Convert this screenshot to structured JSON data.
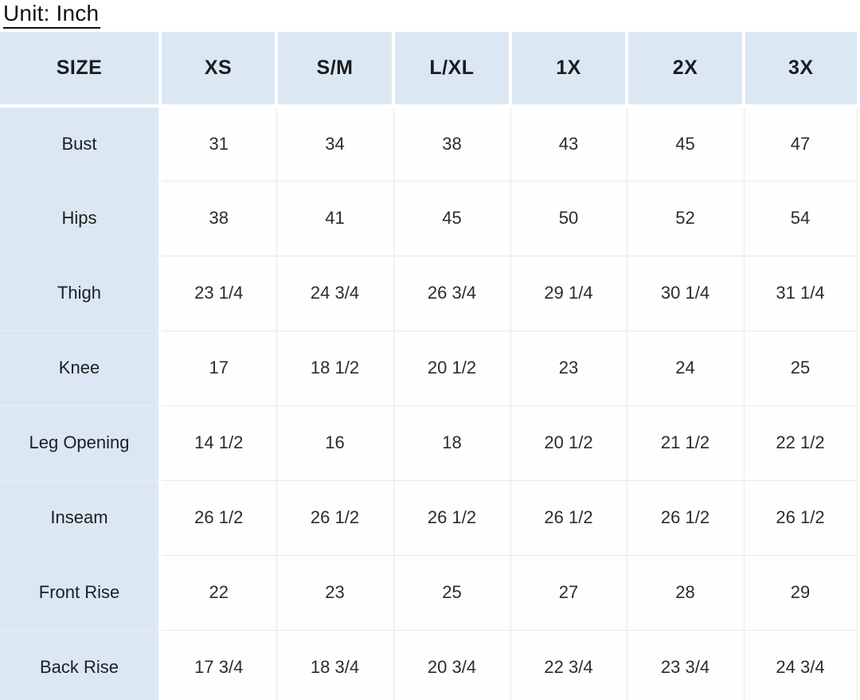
{
  "title": "Unit: Inch",
  "colors": {
    "header_blue": "#dbe8f4",
    "label_blue": "#dbe8f4",
    "grid_line": "#e9e9e6",
    "gutter_white": "#ffffff",
    "text_dark": "#1b1c1e"
  },
  "table": {
    "columns": [
      "SIZE",
      "XS",
      "S/M",
      "L/XL",
      "1X",
      "2X",
      "3X"
    ],
    "rows": [
      {
        "label": "Bust",
        "values": [
          "31",
          "34",
          "38",
          "43",
          "45",
          "47"
        ]
      },
      {
        "label": "Hips",
        "values": [
          "38",
          "41",
          "45",
          "50",
          "52",
          "54"
        ]
      },
      {
        "label": "Thigh",
        "values": [
          "23 1/4",
          "24 3/4",
          "26 3/4",
          "29 1/4",
          "30 1/4",
          "31 1/4"
        ]
      },
      {
        "label": "Knee",
        "values": [
          "17",
          "18 1/2",
          "20 1/2",
          "23",
          "24",
          "25"
        ]
      },
      {
        "label": "Leg Opening",
        "values": [
          "14 1/2",
          "16",
          "18",
          "20 1/2",
          "21 1/2",
          "22 1/2"
        ]
      },
      {
        "label": "Inseam",
        "values": [
          "26 1/2",
          "26 1/2",
          "26 1/2",
          "26 1/2",
          "26 1/2",
          "26 1/2"
        ]
      },
      {
        "label": "Front Rise",
        "values": [
          "22",
          "23",
          "25",
          "27",
          "28",
          "29"
        ]
      },
      {
        "label": "Back Rise",
        "values": [
          "17 3/4",
          "18 3/4",
          "20 3/4",
          "22 3/4",
          "23 3/4",
          "24 3/4"
        ]
      }
    ]
  },
  "chart_data": {
    "type": "table",
    "title": "Unit: Inch",
    "columns": [
      "SIZE",
      "XS",
      "S/M",
      "L/XL",
      "1X",
      "2X",
      "3X"
    ],
    "rows": [
      [
        "Bust",
        "31",
        "34",
        "38",
        "43",
        "45",
        "47"
      ],
      [
        "Hips",
        "38",
        "41",
        "45",
        "50",
        "52",
        "54"
      ],
      [
        "Thigh",
        "23 1/4",
        "24 3/4",
        "26 3/4",
        "29 1/4",
        "30 1/4",
        "31 1/4"
      ],
      [
        "Knee",
        "17",
        "18 1/2",
        "20 1/2",
        "23",
        "24",
        "25"
      ],
      [
        "Leg Opening",
        "14 1/2",
        "16",
        "18",
        "20 1/2",
        "21 1/2",
        "22 1/2"
      ],
      [
        "Inseam",
        "26 1/2",
        "26 1/2",
        "26 1/2",
        "26 1/2",
        "26 1/2",
        "26 1/2"
      ],
      [
        "Front Rise",
        "22",
        "23",
        "25",
        "27",
        "28",
        "29"
      ],
      [
        "Back Rise",
        "17 3/4",
        "18 3/4",
        "20 3/4",
        "22 3/4",
        "23 3/4",
        "24 3/4"
      ]
    ]
  }
}
